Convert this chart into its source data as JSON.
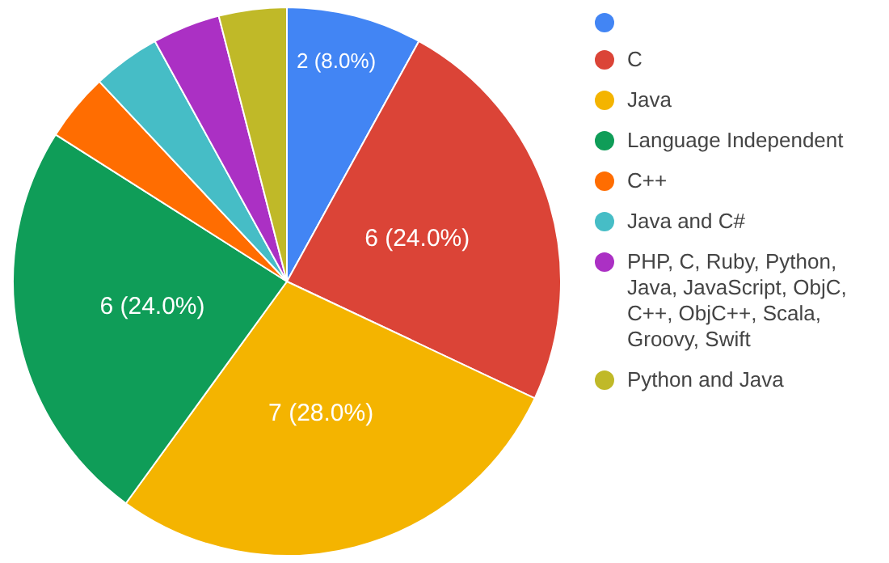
{
  "chart_data": {
    "type": "pie",
    "categories": [
      null,
      "C",
      "Java",
      "Language Independent",
      "C++",
      "Java and C#",
      "PHP, C, Ruby, Python, Java, JavaScript, ObjC, C++, ObjC++, Scala, Groovy, Swift",
      "Python and Java"
    ],
    "values": [
      2,
      6,
      7,
      6,
      1,
      1,
      1,
      1
    ],
    "colors": [
      "#4285f4",
      "#db4437",
      "#f4b400",
      "#0f9d58",
      "#ff6d01",
      "#46bdc6",
      "#ab30c4",
      "#c0b928"
    ],
    "value_labels": [
      "2 (8.0%)",
      "6 (24.0%)",
      "7 (28.0%)",
      "6 (24.0%)",
      null,
      null,
      null,
      null
    ],
    "legend": "right"
  }
}
